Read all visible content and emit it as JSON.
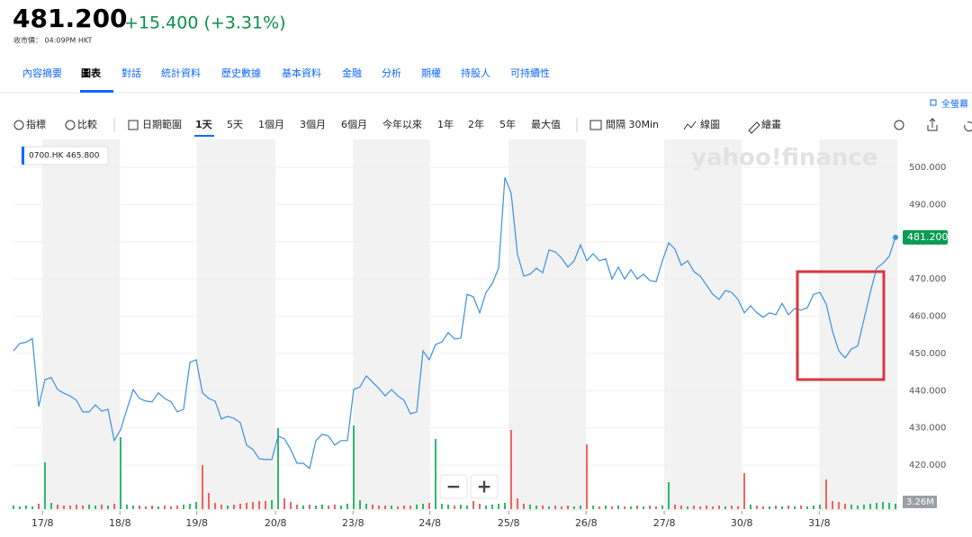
{
  "header": {
    "price": "481.200",
    "change": "+15.400 (+3.31%)",
    "subtitle": "收市價： 04:09PM HKT"
  },
  "tabs": [
    "內容摘要",
    "圖表",
    "對話",
    "統計資料",
    "歷史數據",
    "基本資料",
    "金融",
    "分析",
    "期權",
    "持股人",
    "可持續性"
  ],
  "fullscreen": "全螢幕",
  "toolbar": [
    "指標",
    "比較",
    "日期範圍",
    "1天",
    "5天",
    "1個月",
    "3個月",
    "6個月",
    "今年以來",
    "1年",
    "2年",
    "5年",
    "最大值",
    "間隔 30Min",
    "線圖",
    "繪畫"
  ],
  "chart_data": {
    "type": "line",
    "legend": "0700.HK 465.800",
    "watermark": "yahoo!finance",
    "volume_label": "3.26M",
    "zoom": [
      "−",
      "+"
    ],
    "xlim": [
      0,
      140
    ],
    "xticks": [
      {
        "value": 4.6,
        "label": "17/8"
      },
      {
        "value": 16.9,
        "label": "18/8"
      },
      {
        "value": 29.1,
        "label": "19/8"
      },
      {
        "value": 41.6,
        "label": "20/8"
      },
      {
        "value": 53.9,
        "label": "23/8"
      },
      {
        "value": 66.1,
        "label": "24/8"
      },
      {
        "value": 78.6,
        "label": "25/8"
      },
      {
        "value": 90.9,
        "label": "26/8"
      },
      {
        "value": 103.3,
        "label": "27/8"
      },
      {
        "value": 115.6,
        "label": "30/8"
      },
      {
        "value": 127.9,
        "label": "31/8"
      }
    ],
    "ylim": [
      407.7,
      507.5
    ],
    "yticks": [
      {
        "value": 420,
        "label": "420.000"
      },
      {
        "value": 430,
        "label": "430.000"
      },
      {
        "value": 440,
        "label": "440.000"
      },
      {
        "value": 450,
        "label": "450.000"
      },
      {
        "value": 460,
        "label": "460.000"
      },
      {
        "value": 470,
        "label": "470.000"
      },
      {
        "value": 480,
        "label": "480.000"
      },
      {
        "value": 490,
        "label": "490.000"
      },
      {
        "value": 500,
        "label": "500.000"
      }
    ],
    "grid": true,
    "series": [
      {
        "name": "0700.HK",
        "color": "#3d8fe0",
        "values": [
          450.7,
          452.7,
          453,
          454,
          435.7,
          443,
          443.5,
          440.3,
          439.3,
          438.6,
          437.4,
          434.3,
          434.3,
          436.2,
          434.5,
          435,
          426.6,
          429.5,
          435,
          440.3,
          437.9,
          437.2,
          437,
          439.4,
          437.9,
          437,
          434.3,
          435,
          447.6,
          448.3,
          439.4,
          437.9,
          437.2,
          432.4,
          433.1,
          432.6,
          431.4,
          425.4,
          424.2,
          421.7,
          421.5,
          421.5,
          427.8,
          427.1,
          424.2,
          420.5,
          420.5,
          419.1,
          426.6,
          428.3,
          427.8,
          425.4,
          426.6,
          426.6,
          440.3,
          441,
          444,
          442.3,
          440.6,
          438.6,
          440.3,
          438.6,
          437.4,
          433.8,
          434.3,
          450.7,
          448.3,
          452.4,
          453.1,
          455.6,
          453.9,
          454.1,
          465.9,
          465.2,
          460.9,
          466.4,
          468.8,
          472.9,
          497.3,
          493,
          476.6,
          470.8,
          471.3,
          472.9,
          471.7,
          477.8,
          477.3,
          475.6,
          473.2,
          474.9,
          479.2,
          474.9,
          476.8,
          474.9,
          475.4,
          470,
          473.2,
          470,
          472.5,
          470,
          471.3,
          469.6,
          469.3,
          474.9,
          479.7,
          478,
          473.7,
          474.9,
          472,
          470.8,
          468.4,
          465.9,
          464.5,
          466.9,
          466.4,
          464.5,
          460.9,
          462.8,
          460.9,
          459.7,
          460.9,
          460.4,
          463.5,
          460.4,
          462.1,
          461.6,
          462.3,
          465.9,
          466.4,
          463.3,
          456,
          450.7,
          448.8,
          451.2,
          452,
          459.2,
          466.4,
          472.9,
          474.2,
          476.1,
          481.2
        ]
      }
    ],
    "volume": [
      0.4,
      0.3,
      0.4,
      0.3,
      0.6,
      5.2,
      0.7,
      0.5,
      0.4,
      0.4,
      0.5,
      0.4,
      0.5,
      0.4,
      0.5,
      0.4,
      0.6,
      8.0,
      0.5,
      0.4,
      0.4,
      0.3,
      0.4,
      0.3,
      0.4,
      0.3,
      0.4,
      0.5,
      0.6,
      0.8,
      4.9,
      1.8,
      0.7,
      0.5,
      0.4,
      0.5,
      0.6,
      0.7,
      0.8,
      0.9,
      0.9,
      1.0,
      9.0,
      1.2,
      0.8,
      0.5,
      0.4,
      0.5,
      0.4,
      0.5,
      0.4,
      0.5,
      0.4,
      0.6,
      9.3,
      1.0,
      0.6,
      0.5,
      0.4,
      0.4,
      0.4,
      0.3,
      0.4,
      0.4,
      0.5,
      0.6,
      0.7,
      7.8,
      0.6,
      0.5,
      0.4,
      0.5,
      0.4,
      0.9,
      0.6,
      0.4,
      0.5,
      0.6,
      0.7,
      8.8,
      1.2,
      0.6,
      0.5,
      0.4,
      0.4,
      0.3,
      0.4,
      0.3,
      0.4,
      0.3,
      0.4,
      7.2,
      0.4,
      0.3,
      0.4,
      0.3,
      0.4,
      0.3,
      0.3,
      0.4,
      0.3,
      0.4,
      0.3,
      0.4,
      3.0,
      0.5,
      0.4,
      0.3,
      0.4,
      0.3,
      0.4,
      0.3,
      0.4,
      0.3,
      0.4,
      0.3,
      4.0,
      0.5,
      0.4,
      0.3,
      0.3,
      0.4,
      0.3,
      0.4,
      0.3,
      0.4,
      0.3,
      0.4,
      0.5,
      3.3,
      0.9,
      0.8,
      0.6,
      0.5,
      0.4,
      0.5,
      0.6,
      0.7,
      0.8,
      0.7,
      0.6
    ],
    "vlim": [
      0,
      10
    ]
  }
}
